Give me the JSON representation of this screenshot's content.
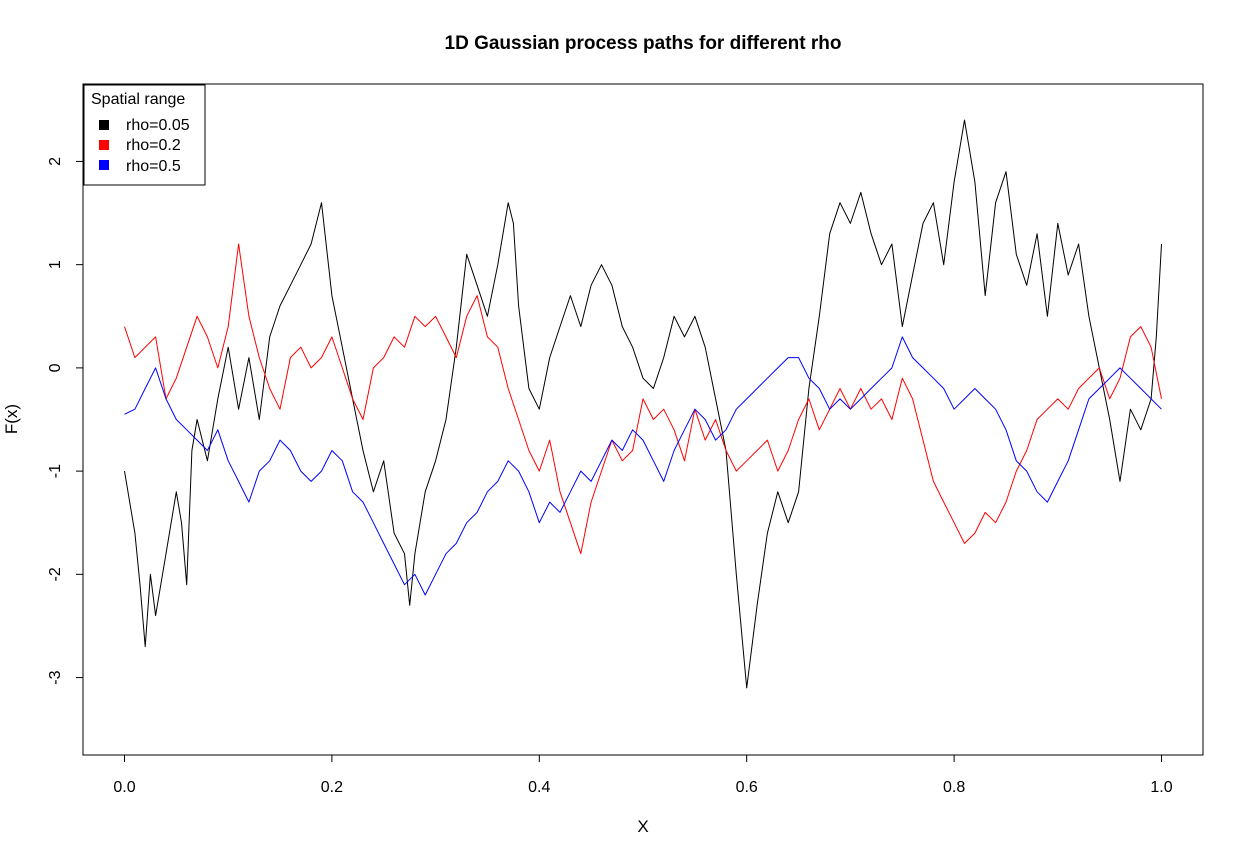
{
  "chart_data": {
    "type": "line",
    "title": "1D Gaussian process paths for different rho",
    "xlabel": "X",
    "ylabel": "F(x)",
    "xlim": [
      -0.04,
      1.04
    ],
    "ylim": [
      -3.75,
      2.75
    ],
    "xticks": [
      0.0,
      0.2,
      0.4,
      0.6,
      0.8,
      1.0
    ],
    "xtick_labels": [
      "0.0",
      "0.2",
      "0.4",
      "0.6",
      "0.8",
      "1.0"
    ],
    "yticks": [
      -3,
      -2,
      -1,
      0,
      1,
      2
    ],
    "ytick_labels": [
      "-3",
      "-2",
      "-1",
      "0",
      "1",
      "2"
    ],
    "grid": false,
    "legend": {
      "title": "Spatial range",
      "position": "top-left",
      "entries": [
        "rho=0.05",
        "rho=0.2",
        "rho=0.5"
      ]
    },
    "series": [
      {
        "name": "rho=0.05",
        "color": "#000000",
        "x": [
          0.0,
          0.01,
          0.015,
          0.02,
          0.025,
          0.03,
          0.04,
          0.05,
          0.055,
          0.06,
          0.065,
          0.07,
          0.08,
          0.09,
          0.1,
          0.11,
          0.12,
          0.13,
          0.14,
          0.15,
          0.16,
          0.17,
          0.18,
          0.19,
          0.2,
          0.21,
          0.22,
          0.23,
          0.24,
          0.25,
          0.26,
          0.27,
          0.275,
          0.28,
          0.29,
          0.3,
          0.31,
          0.32,
          0.33,
          0.34,
          0.35,
          0.36,
          0.37,
          0.375,
          0.38,
          0.39,
          0.4,
          0.41,
          0.42,
          0.43,
          0.44,
          0.45,
          0.46,
          0.47,
          0.48,
          0.49,
          0.5,
          0.51,
          0.52,
          0.53,
          0.54,
          0.55,
          0.56,
          0.57,
          0.58,
          0.59,
          0.6,
          0.61,
          0.62,
          0.63,
          0.64,
          0.65,
          0.66,
          0.67,
          0.68,
          0.69,
          0.7,
          0.71,
          0.72,
          0.73,
          0.74,
          0.75,
          0.76,
          0.77,
          0.78,
          0.79,
          0.8,
          0.81,
          0.82,
          0.83,
          0.84,
          0.85,
          0.86,
          0.87,
          0.88,
          0.89,
          0.9,
          0.91,
          0.92,
          0.93,
          0.94,
          0.95,
          0.96,
          0.97,
          0.98,
          0.99,
          0.995,
          1.0
        ],
        "y": [
          -1.0,
          -1.6,
          -2.1,
          -2.7,
          -2.0,
          -2.4,
          -1.8,
          -1.2,
          -1.5,
          -2.1,
          -0.8,
          -0.5,
          -0.9,
          -0.3,
          0.2,
          -0.4,
          0.1,
          -0.5,
          0.3,
          0.6,
          0.8,
          1.0,
          1.2,
          1.6,
          0.7,
          0.2,
          -0.3,
          -0.8,
          -1.2,
          -0.9,
          -1.6,
          -1.8,
          -2.3,
          -1.8,
          -1.2,
          -0.9,
          -0.5,
          0.2,
          1.1,
          0.8,
          0.5,
          1.0,
          1.6,
          1.4,
          0.6,
          -0.2,
          -0.4,
          0.1,
          0.4,
          0.7,
          0.4,
          0.8,
          1.0,
          0.8,
          0.4,
          0.2,
          -0.1,
          -0.2,
          0.1,
          0.5,
          0.3,
          0.5,
          0.2,
          -0.3,
          -0.8,
          -2.0,
          -3.1,
          -2.3,
          -1.6,
          -1.2,
          -1.5,
          -1.2,
          -0.2,
          0.5,
          1.3,
          1.6,
          1.4,
          1.7,
          1.3,
          1.0,
          1.2,
          0.4,
          0.9,
          1.4,
          1.6,
          1.0,
          1.8,
          2.4,
          1.8,
          0.7,
          1.6,
          1.9,
          1.1,
          0.8,
          1.3,
          0.5,
          1.4,
          0.9,
          1.2,
          0.5,
          0.0,
          -0.5,
          -1.1,
          -0.4,
          -0.6,
          -0.3,
          0.3,
          1.2
        ]
      },
      {
        "name": "rho=0.2",
        "color": "#ff0000",
        "x": [
          0.0,
          0.01,
          0.02,
          0.03,
          0.04,
          0.05,
          0.06,
          0.07,
          0.08,
          0.09,
          0.1,
          0.11,
          0.12,
          0.13,
          0.14,
          0.15,
          0.16,
          0.17,
          0.18,
          0.19,
          0.2,
          0.21,
          0.22,
          0.23,
          0.24,
          0.25,
          0.26,
          0.27,
          0.28,
          0.29,
          0.3,
          0.31,
          0.32,
          0.33,
          0.34,
          0.35,
          0.36,
          0.37,
          0.38,
          0.39,
          0.4,
          0.41,
          0.42,
          0.43,
          0.44,
          0.45,
          0.46,
          0.47,
          0.48,
          0.49,
          0.5,
          0.51,
          0.52,
          0.53,
          0.54,
          0.55,
          0.56,
          0.57,
          0.58,
          0.59,
          0.6,
          0.61,
          0.62,
          0.63,
          0.64,
          0.65,
          0.66,
          0.67,
          0.68,
          0.69,
          0.7,
          0.71,
          0.72,
          0.73,
          0.74,
          0.75,
          0.76,
          0.77,
          0.78,
          0.79,
          0.8,
          0.81,
          0.82,
          0.83,
          0.84,
          0.85,
          0.86,
          0.87,
          0.88,
          0.89,
          0.9,
          0.91,
          0.92,
          0.93,
          0.94,
          0.95,
          0.96,
          0.97,
          0.98,
          0.99,
          1.0
        ],
        "y": [
          0.4,
          0.1,
          0.2,
          0.3,
          -0.3,
          -0.1,
          0.2,
          0.5,
          0.3,
          0.0,
          0.4,
          1.2,
          0.5,
          0.1,
          -0.2,
          -0.4,
          0.1,
          0.2,
          0.0,
          0.1,
          0.3,
          0.0,
          -0.3,
          -0.5,
          0.0,
          0.1,
          0.3,
          0.2,
          0.5,
          0.4,
          0.5,
          0.3,
          0.1,
          0.5,
          0.7,
          0.3,
          0.2,
          -0.2,
          -0.5,
          -0.8,
          -1.0,
          -0.7,
          -1.2,
          -1.5,
          -1.8,
          -1.3,
          -1.0,
          -0.7,
          -0.9,
          -0.8,
          -0.3,
          -0.5,
          -0.4,
          -0.6,
          -0.9,
          -0.4,
          -0.7,
          -0.5,
          -0.8,
          -1.0,
          -0.9,
          -0.8,
          -0.7,
          -1.0,
          -0.8,
          -0.5,
          -0.3,
          -0.6,
          -0.4,
          -0.2,
          -0.4,
          -0.2,
          -0.4,
          -0.3,
          -0.5,
          -0.1,
          -0.3,
          -0.7,
          -1.1,
          -1.3,
          -1.5,
          -1.7,
          -1.6,
          -1.4,
          -1.5,
          -1.3,
          -1.0,
          -0.8,
          -0.5,
          -0.4,
          -0.3,
          -0.4,
          -0.2,
          -0.1,
          0.0,
          -0.3,
          -0.1,
          0.3,
          0.4,
          0.2,
          -0.3
        ]
      },
      {
        "name": "rho=0.5",
        "color": "#0000ff",
        "x": [
          0.0,
          0.01,
          0.02,
          0.03,
          0.04,
          0.05,
          0.06,
          0.07,
          0.08,
          0.09,
          0.1,
          0.11,
          0.12,
          0.13,
          0.14,
          0.15,
          0.16,
          0.17,
          0.18,
          0.19,
          0.2,
          0.21,
          0.22,
          0.23,
          0.24,
          0.25,
          0.26,
          0.27,
          0.28,
          0.29,
          0.3,
          0.31,
          0.32,
          0.33,
          0.34,
          0.35,
          0.36,
          0.37,
          0.38,
          0.39,
          0.4,
          0.41,
          0.42,
          0.43,
          0.44,
          0.45,
          0.46,
          0.47,
          0.48,
          0.49,
          0.5,
          0.51,
          0.52,
          0.53,
          0.54,
          0.55,
          0.56,
          0.57,
          0.58,
          0.59,
          0.6,
          0.61,
          0.62,
          0.63,
          0.64,
          0.65,
          0.66,
          0.67,
          0.68,
          0.69,
          0.7,
          0.71,
          0.72,
          0.73,
          0.74,
          0.75,
          0.76,
          0.77,
          0.78,
          0.79,
          0.8,
          0.81,
          0.82,
          0.83,
          0.84,
          0.85,
          0.86,
          0.87,
          0.88,
          0.89,
          0.9,
          0.91,
          0.92,
          0.93,
          0.94,
          0.95,
          0.96,
          0.97,
          0.98,
          0.99,
          1.0
        ],
        "y": [
          -0.45,
          -0.4,
          -0.2,
          0.0,
          -0.3,
          -0.5,
          -0.6,
          -0.7,
          -0.8,
          -0.6,
          -0.9,
          -1.1,
          -1.3,
          -1.0,
          -0.9,
          -0.7,
          -0.8,
          -1.0,
          -1.1,
          -1.0,
          -0.8,
          -0.9,
          -1.2,
          -1.3,
          -1.5,
          -1.7,
          -1.9,
          -2.1,
          -2.0,
          -2.2,
          -2.0,
          -1.8,
          -1.7,
          -1.5,
          -1.4,
          -1.2,
          -1.1,
          -0.9,
          -1.0,
          -1.2,
          -1.5,
          -1.3,
          -1.4,
          -1.2,
          -1.0,
          -1.1,
          -0.9,
          -0.7,
          -0.8,
          -0.6,
          -0.7,
          -0.9,
          -1.1,
          -0.8,
          -0.6,
          -0.4,
          -0.5,
          -0.7,
          -0.6,
          -0.4,
          -0.3,
          -0.2,
          -0.1,
          0.0,
          0.1,
          0.1,
          -0.1,
          -0.2,
          -0.4,
          -0.3,
          -0.4,
          -0.3,
          -0.2,
          -0.1,
          0.0,
          0.3,
          0.1,
          0.0,
          -0.1,
          -0.2,
          -0.4,
          -0.3,
          -0.2,
          -0.3,
          -0.4,
          -0.6,
          -0.9,
          -1.0,
          -1.2,
          -1.3,
          -1.1,
          -0.9,
          -0.6,
          -0.3,
          -0.2,
          -0.1,
          0.0,
          -0.1,
          -0.2,
          -0.3,
          -0.4
        ]
      }
    ]
  }
}
